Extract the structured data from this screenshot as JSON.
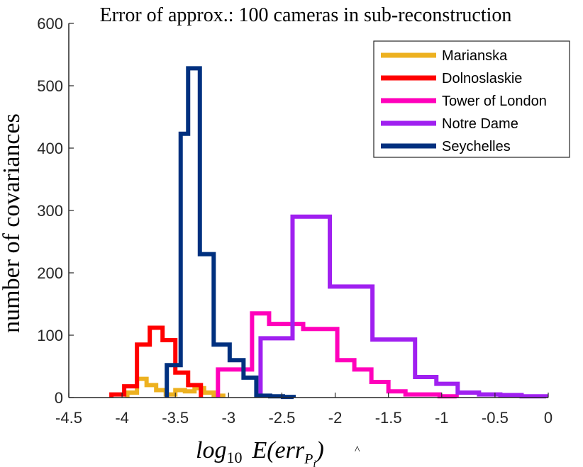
{
  "chart_data": {
    "type": "histogram",
    "title": "Error of approx.: 100 cameras in sub-reconstruction",
    "ylabel": "number of covariances",
    "xlabel": {
      "base": "log",
      "sub": "10",
      "expr": "E(err",
      "accent": "^",
      "var": "P",
      "varsub": "i",
      "close": ")"
    },
    "xlim": [
      -4.5,
      0
    ],
    "ylim": [
      0,
      600
    ],
    "xticks": [
      -4.5,
      -4,
      -3.5,
      -3,
      -2.5,
      -2,
      -1.5,
      -1,
      -0.5,
      0
    ],
    "xtick_labels": [
      "-4.5",
      "-4",
      "-3.5",
      "-3",
      "-2.5",
      "-2",
      "-1.5",
      "-1",
      "-0.5",
      "0"
    ],
    "yticks": [
      0,
      100,
      200,
      300,
      400,
      500,
      600
    ],
    "ytick_labels": [
      "0",
      "100",
      "200",
      "300",
      "400",
      "500",
      "600"
    ],
    "grid": false,
    "legend_position": "top-right",
    "series": [
      {
        "name": "Marianska",
        "color": "#EDB120",
        "edges": [
          -3.95,
          -3.86,
          -3.77,
          -3.68,
          -3.59,
          -3.5,
          -3.41,
          -3.32,
          -3.23,
          -3.14,
          -3.05
        ],
        "counts": [
          8,
          30,
          20,
          12,
          5,
          12,
          10,
          15,
          8,
          3
        ]
      },
      {
        "name": "Dolnoslaskie",
        "color": "#FF0000",
        "edges": [
          -4.1,
          -3.98,
          -3.86,
          -3.74,
          -3.62,
          -3.5,
          -3.38,
          -3.26
        ],
        "counts": [
          5,
          18,
          85,
          112,
          92,
          40,
          20
        ]
      },
      {
        "name": "Tower of London",
        "color": "#FF00BB",
        "edges": [
          -3.1,
          -2.94,
          -2.78,
          -2.62,
          -2.46,
          -2.3,
          -2.14,
          -1.98,
          -1.82,
          -1.66,
          -1.5,
          -1.34,
          -1.18,
          -1.02,
          -0.86
        ],
        "counts": [
          45,
          45,
          135,
          118,
          118,
          110,
          110,
          60,
          45,
          25,
          10,
          5,
          5,
          2
        ]
      },
      {
        "name": "Notre Dame",
        "color": "#A020F0",
        "edges": [
          -2.7,
          -2.55,
          -2.4,
          -2.23,
          -2.05,
          -1.85,
          -1.65,
          -1.45,
          -1.25,
          -1.05,
          -0.85,
          -0.65,
          -0.45,
          -0.25,
          -0.02
        ],
        "counts": [
          95,
          95,
          290,
          290,
          178,
          178,
          93,
          93,
          33,
          22,
          8,
          5,
          4,
          2
        ]
      },
      {
        "name": "Seychelles",
        "color": "#00307F",
        "edges": [
          -3.58,
          -3.45,
          -3.38,
          -3.27,
          -3.14,
          -2.99,
          -2.86,
          -2.74,
          -2.61,
          -2.49,
          -2.39
        ],
        "counts": [
          52,
          423,
          528,
          230,
          85,
          60,
          32,
          3,
          2,
          1
        ]
      }
    ]
  }
}
